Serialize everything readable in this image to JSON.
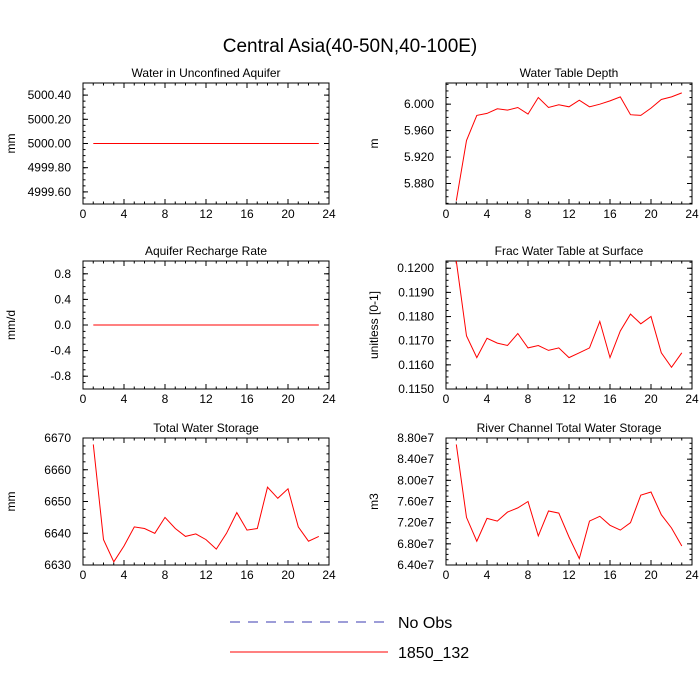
{
  "figure": {
    "title": "Central Asia(40-50N,40-100E)",
    "line_color": "#ff0000",
    "noobs_color": "#3b3bb0"
  },
  "legend": {
    "entries": [
      {
        "label": "No Obs",
        "style": "dashed",
        "color": "#3b3bb0"
      },
      {
        "label": "1850_132",
        "style": "solid",
        "color": "#ff0000"
      }
    ]
  },
  "chart_data": [
    {
      "type": "line",
      "title": "Water in Unconfined Aquifer",
      "xlabel": "",
      "ylabel": "mm",
      "xlim": [
        0,
        24
      ],
      "xticks": [
        0,
        4,
        8,
        12,
        16,
        20,
        24
      ],
      "ylim": [
        4999.5,
        5000.5
      ],
      "yticks": [
        4999.6,
        4999.8,
        5000.0,
        5000.2,
        5000.4
      ],
      "ytick_labels": [
        "4999.60",
        "4999.80",
        "5000.00",
        "5000.20",
        "5000.40"
      ],
      "series": [
        {
          "name": "1850_132",
          "color": "#ff0000",
          "x": [
            1,
            2,
            3,
            4,
            5,
            6,
            7,
            8,
            9,
            10,
            11,
            12,
            13,
            14,
            15,
            16,
            17,
            18,
            19,
            20,
            21,
            22,
            23
          ],
          "y": [
            5000,
            5000,
            5000,
            5000,
            5000,
            5000,
            5000,
            5000,
            5000,
            5000,
            5000,
            5000,
            5000,
            5000,
            5000,
            5000,
            5000,
            5000,
            5000,
            5000,
            5000,
            5000,
            5000
          ]
        }
      ]
    },
    {
      "type": "line",
      "title": "Water Table Depth",
      "xlabel": "",
      "ylabel": "m",
      "xlim": [
        0,
        24
      ],
      "xticks": [
        0,
        4,
        8,
        12,
        16,
        20,
        24
      ],
      "ylim": [
        5.849,
        6.032
      ],
      "yticks": [
        5.88,
        5.92,
        5.96,
        6.0
      ],
      "ytick_labels": [
        "5.880",
        "5.920",
        "5.960",
        "6.000"
      ],
      "series": [
        {
          "name": "1850_132",
          "color": "#ff0000",
          "x": [
            1,
            2,
            3,
            4,
            5,
            6,
            7,
            8,
            9,
            10,
            11,
            12,
            13,
            14,
            15,
            16,
            17,
            18,
            19,
            20,
            21,
            22,
            23
          ],
          "y": [
            5.854,
            5.945,
            5.983,
            5.986,
            5.993,
            5.991,
            5.995,
            5.985,
            6.01,
            5.995,
            5.999,
            5.996,
            6.006,
            5.996,
            6.0,
            6.005,
            6.011,
            5.984,
            5.983,
            5.994,
            6.007,
            6.011,
            6.017
          ]
        }
      ]
    },
    {
      "type": "line",
      "title": "Aquifer Recharge Rate",
      "xlabel": "",
      "ylabel": "mm/d",
      "xlim": [
        0,
        24
      ],
      "xticks": [
        0,
        4,
        8,
        12,
        16,
        20,
        24
      ],
      "ylim": [
        -1.0,
        1.0
      ],
      "yticks": [
        -0.8,
        -0.4,
        0.0,
        0.4,
        0.8
      ],
      "ytick_labels": [
        "-0.8",
        "-0.4",
        "0.0",
        "0.4",
        "0.8"
      ],
      "series": [
        {
          "name": "1850_132",
          "color": "#ff0000",
          "x": [
            1,
            2,
            3,
            4,
            5,
            6,
            7,
            8,
            9,
            10,
            11,
            12,
            13,
            14,
            15,
            16,
            17,
            18,
            19,
            20,
            21,
            22,
            23
          ],
          "y": [
            0,
            0,
            0,
            0,
            0,
            0,
            0,
            0,
            0,
            0,
            0,
            0,
            0,
            0,
            0,
            0,
            0,
            0,
            0,
            0,
            0,
            0,
            0
          ]
        }
      ]
    },
    {
      "type": "line",
      "title": "Frac Water Table at Surface",
      "xlabel": "",
      "ylabel": "unitless [0-1]",
      "xlim": [
        0,
        24
      ],
      "xticks": [
        0,
        4,
        8,
        12,
        16,
        20,
        24
      ],
      "ylim": [
        0.115,
        0.1203
      ],
      "yticks": [
        0.115,
        0.116,
        0.117,
        0.118,
        0.119,
        0.12
      ],
      "ytick_labels": [
        "0.1150",
        "0.1160",
        "0.1170",
        "0.1180",
        "0.1190",
        "0.1200"
      ],
      "series": [
        {
          "name": "1850_132",
          "color": "#ff0000",
          "x": [
            1,
            2,
            3,
            4,
            5,
            6,
            7,
            8,
            9,
            10,
            11,
            12,
            13,
            14,
            15,
            16,
            17,
            18,
            19,
            20,
            21,
            22,
            23
          ],
          "y": [
            0.1203,
            0.1172,
            0.1163,
            0.1171,
            0.1169,
            0.1168,
            0.1173,
            0.1167,
            0.1168,
            0.1166,
            0.1167,
            0.1163,
            0.1165,
            0.1167,
            0.1178,
            0.1163,
            0.1174,
            0.1181,
            0.1177,
            0.118,
            0.1165,
            0.1159,
            0.1165
          ]
        }
      ]
    },
    {
      "type": "line",
      "title": "Total Water Storage",
      "xlabel": "",
      "ylabel": "mm",
      "xlim": [
        0,
        24
      ],
      "xticks": [
        0,
        4,
        8,
        12,
        16,
        20,
        24
      ],
      "ylim": [
        6630,
        6670
      ],
      "yticks": [
        6630,
        6640,
        6650,
        6660,
        6670
      ],
      "ytick_labels": [
        "6630",
        "6640",
        "6650",
        "6660",
        "6670"
      ],
      "series": [
        {
          "name": "1850_132",
          "color": "#ff0000",
          "x": [
            1,
            2,
            3,
            4,
            5,
            6,
            7,
            8,
            9,
            10,
            11,
            12,
            13,
            14,
            15,
            16,
            17,
            18,
            19,
            20,
            21,
            22,
            23
          ],
          "y": [
            6668,
            6638,
            6631,
            6636,
            6642,
            6641.5,
            6640,
            6645,
            6641.5,
            6639,
            6639.8,
            6638,
            6635,
            6640,
            6646.5,
            6641,
            6641.5,
            6654.5,
            6651,
            6654,
            6642,
            6637.5,
            6639
          ]
        }
      ]
    },
    {
      "type": "line",
      "title": "River Channel Total Water Storage",
      "xlabel": "",
      "ylabel": "m3",
      "xlim": [
        0,
        24
      ],
      "xticks": [
        0,
        4,
        8,
        12,
        16,
        20,
        24
      ],
      "ylim": [
        64000000,
        88000000
      ],
      "yticks": [
        64000000,
        68000000,
        72000000,
        76000000,
        80000000,
        84000000,
        88000000
      ],
      "ytick_labels": [
        "6.40e7",
        "6.80e7",
        "7.20e7",
        "7.60e7",
        "8.00e7",
        "8.40e7",
        "8.80e7"
      ],
      "series": [
        {
          "name": "1850_132",
          "color": "#ff0000",
          "x": [
            1,
            2,
            3,
            4,
            5,
            6,
            7,
            8,
            9,
            10,
            11,
            12,
            13,
            14,
            15,
            16,
            17,
            18,
            19,
            20,
            21,
            22,
            23
          ],
          "y": [
            86800000,
            73000000,
            68500000,
            72800000,
            72300000,
            74000000,
            74800000,
            76000000,
            69500000,
            74200000,
            73800000,
            69300000,
            65200000,
            72300000,
            73200000,
            71500000,
            70600000,
            72000000,
            77200000,
            77800000,
            73500000,
            71000000,
            67600000
          ]
        }
      ]
    }
  ]
}
